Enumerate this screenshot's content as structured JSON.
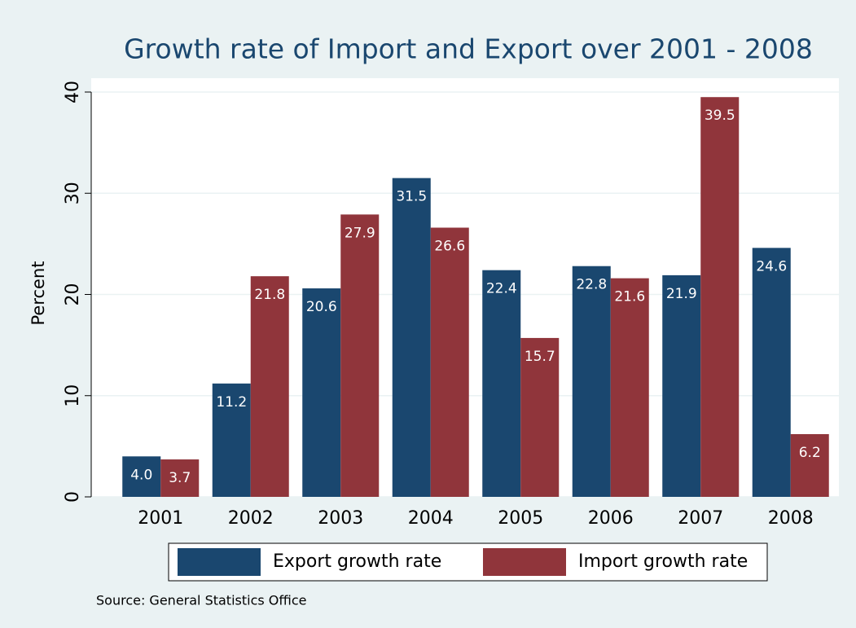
{
  "chart_data": {
    "type": "bar",
    "title": "Growth rate of Import and Export over 2001 - 2008",
    "y_label": "Percent",
    "source": "Source:  General Statistics Office",
    "categories": [
      "2001",
      "2002",
      "2003",
      "2004",
      "2005",
      "2006",
      "2007",
      "2008"
    ],
    "series": [
      {
        "name": "Export growth rate",
        "color": "#1a476f",
        "values": [
          4.0,
          11.2,
          20.6,
          31.5,
          22.4,
          22.8,
          21.9,
          24.6
        ],
        "value_labels": [
          "4.0",
          "11.2",
          "20.6",
          "31.5",
          "22.4",
          "22.8",
          "21.9",
          "24.6"
        ]
      },
      {
        "name": "Import growth rate",
        "color": "#90353b",
        "values": [
          3.7,
          21.8,
          27.9,
          26.6,
          15.7,
          21.6,
          39.5,
          6.2
        ],
        "value_labels": [
          "3.7",
          "21.8",
          "27.9",
          "26.6",
          "15.7",
          "21.6",
          "39.5",
          "6.2"
        ]
      }
    ],
    "ylim": [
      0,
      40
    ],
    "yticks": [
      0,
      10,
      20,
      30,
      40
    ],
    "grid": true
  }
}
